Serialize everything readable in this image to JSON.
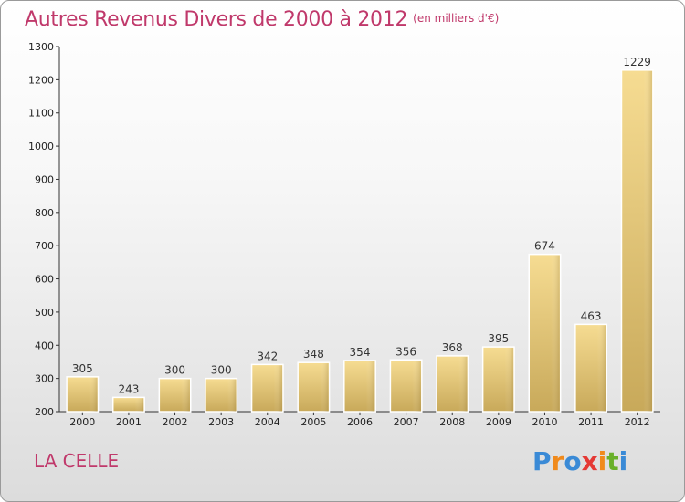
{
  "header": {
    "title": "Autres Revenus Divers de 2000 à 2012",
    "subtitle": "(en milliers d'€)"
  },
  "footer": {
    "commune": "LA CELLE",
    "logo": {
      "letters": [
        "P",
        "r",
        "o",
        "x",
        "i",
        "t",
        "i"
      ],
      "colors": [
        "#3a8ad6",
        "#f08a1c",
        "#3a8ad6",
        "#e53935",
        "#f08a1c",
        "#6ab02a",
        "#3a8ad6"
      ]
    }
  },
  "chart_data": {
    "type": "bar",
    "title": "Autres Revenus Divers de 2000 à 2012",
    "subtitle": "(en milliers d'€)",
    "xlabel": "",
    "ylabel": "",
    "categories": [
      "2000",
      "2001",
      "2002",
      "2003",
      "2004",
      "2005",
      "2006",
      "2007",
      "2008",
      "2009",
      "2010",
      "2011",
      "2012"
    ],
    "values": [
      305,
      243,
      300,
      300,
      342,
      348,
      354,
      356,
      368,
      395,
      674,
      463,
      1229
    ],
    "value_labels": [
      "305",
      "243",
      "300",
      "300",
      "342",
      "348",
      "354",
      "356",
      "368",
      "395",
      "674",
      "463",
      "1229"
    ],
    "ylim": [
      200,
      1300
    ],
    "yticks": [
      200,
      300,
      400,
      500,
      600,
      700,
      800,
      900,
      1000,
      1100,
      1200,
      1300
    ],
    "ytick_labels": [
      "200",
      "300",
      "400",
      "500",
      "600",
      "700",
      "800",
      "900",
      "1000",
      "1100",
      "1200",
      "1300"
    ],
    "grid": false,
    "bar_color": "#e8c97a"
  }
}
